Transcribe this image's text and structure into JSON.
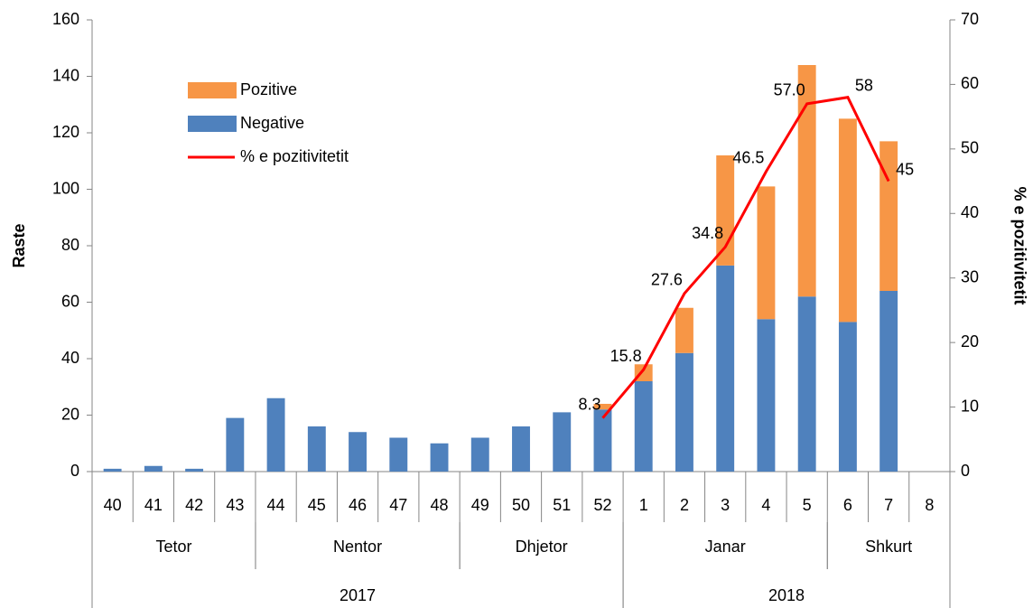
{
  "chart_data": {
    "type": "bar",
    "categories": [
      "40",
      "41",
      "42",
      "43",
      "44",
      "45",
      "46",
      "47",
      "48",
      "49",
      "50",
      "51",
      "52",
      "1",
      "2",
      "3",
      "4",
      "5",
      "6",
      "7",
      "8"
    ],
    "month_groups": [
      {
        "label": "Tetor",
        "span": 4
      },
      {
        "label": "Nentor",
        "span": 5
      },
      {
        "label": "Dhjetor",
        "span": 4
      },
      {
        "label": "Janar",
        "span": 5
      },
      {
        "label": "Shkurt",
        "span": 3
      }
    ],
    "year_groups": [
      {
        "label": "2017",
        "span": 13
      },
      {
        "label": "2018",
        "span": 8
      }
    ],
    "series": [
      {
        "name": "Pozitive",
        "type": "bar",
        "color": "#f79646",
        "values": [
          null,
          null,
          null,
          null,
          null,
          null,
          null,
          null,
          null,
          null,
          null,
          null,
          2,
          6,
          16,
          39,
          47,
          82,
          72,
          53,
          null
        ]
      },
      {
        "name": "Negative",
        "type": "bar",
        "color": "#4f81bd",
        "values": [
          1,
          2,
          1,
          19,
          26,
          16,
          14,
          12,
          10,
          12,
          16,
          21,
          22,
          32,
          42,
          73,
          54,
          62,
          53,
          64,
          null
        ]
      },
      {
        "name": "% e pozitivitetit",
        "type": "line",
        "axis": "y2",
        "color": "#ff0000",
        "values": [
          null,
          null,
          null,
          null,
          null,
          null,
          null,
          null,
          null,
          null,
          null,
          null,
          8.3,
          15.8,
          27.6,
          34.8,
          46.5,
          57.0,
          58,
          45,
          null
        ],
        "value_labels": [
          null,
          null,
          null,
          null,
          null,
          null,
          null,
          null,
          null,
          null,
          null,
          null,
          "8.3",
          "15.8",
          "27.6",
          "34.8",
          "46.5",
          "57.0",
          "58",
          "45",
          null
        ]
      }
    ],
    "ylabel": "Raste",
    "y2label": "% e pozitivitetit",
    "ylim": [
      0,
      160
    ],
    "yticks": [
      0,
      20,
      40,
      60,
      80,
      100,
      120,
      140,
      160
    ],
    "y2lim": [
      0,
      70
    ],
    "y2ticks": [
      0,
      10,
      20,
      30,
      40,
      50,
      60,
      70
    ],
    "legend": "upper left",
    "grid": false
  }
}
